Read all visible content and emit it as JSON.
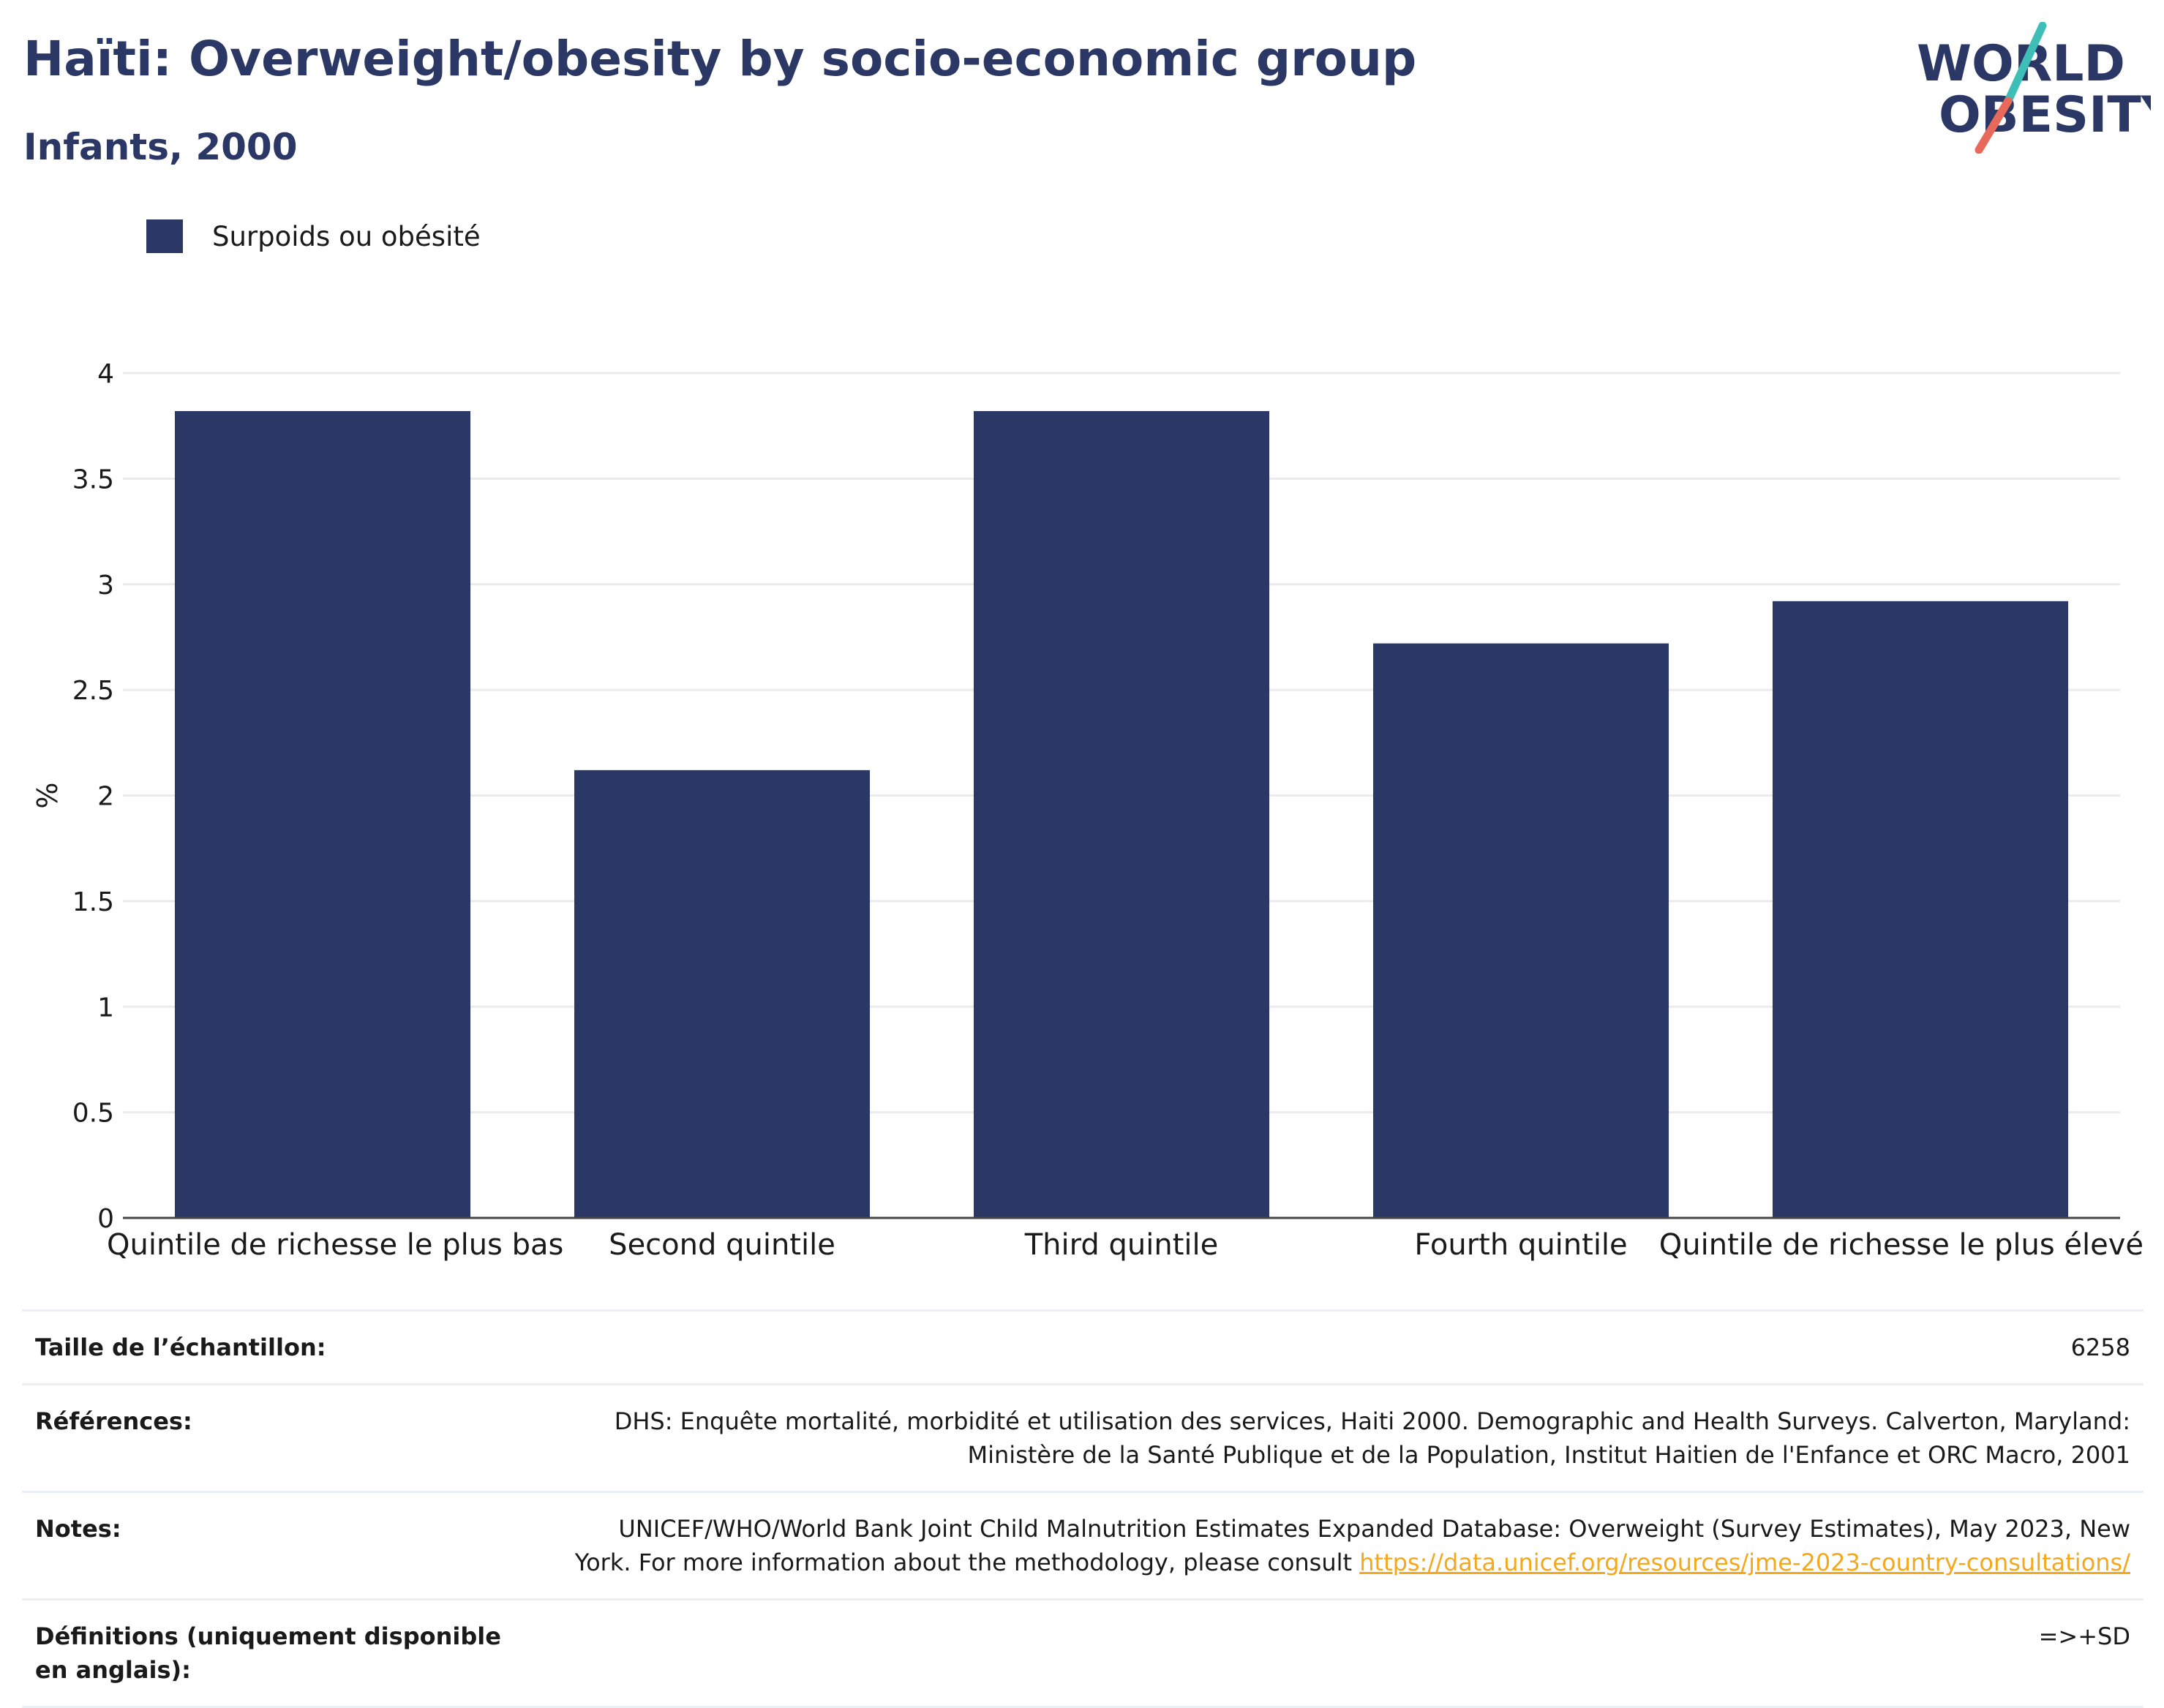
{
  "header": {
    "title": "Haïti: Overweight/obesity by socio-economic group",
    "subtitle": "Infants, 2000"
  },
  "logo": {
    "line1": "WORLD",
    "line2": "OBESITY"
  },
  "colors": {
    "bar": "#2b3764",
    "title": "#2b3764",
    "link": "#f4a81c",
    "logo_teal": "#3dbfb8",
    "logo_coral": "#e8685a"
  },
  "chart_data": {
    "type": "bar",
    "categories": [
      "Quintile de richesse le plus bas",
      "Second quintile",
      "Third quintile",
      "Fourth quintile",
      "Quintile de richesse le plus élevé"
    ],
    "series": [
      {
        "name": "Surpoids ou obésité",
        "values": [
          3.82,
          2.12,
          3.82,
          2.72,
          2.92
        ]
      }
    ],
    "ylabel": "%",
    "xlabel": "",
    "ylim": [
      0,
      4
    ],
    "yticks": [
      0,
      0.5,
      1,
      1.5,
      2,
      2.5,
      3,
      3.5,
      4
    ],
    "ytick_labels": [
      "0",
      "0.5",
      "1",
      "1.5",
      "2",
      "2.5",
      "3",
      "3.5",
      "4"
    ],
    "grid": true,
    "legend_position": "top-left"
  },
  "info": {
    "sample_label": "Taille de l’échantillon:",
    "sample_value": "6258",
    "references_label": "Références:",
    "references_value": "DHS: Enquête mortalité, morbidité et utilisation des services, Haiti 2000. Demographic and Health Surveys. Calverton, Maryland: Ministère de la Santé Publique et de la Population, Institut Haitien de l'Enfance et ORC Macro, 2001",
    "notes_label": "Notes:",
    "notes_value": "UNICEF/WHO/World Bank Joint Child Malnutrition Estimates Expanded Database: Overweight (Survey Estimates), May 2023, New York. For more information about the methodology, please consult",
    "notes_link": "https://data.unicef.org/resources/jme-2023-country-consultations/",
    "definitions_label": "Définitions (uniquement disponible en anglais):",
    "definitions_value": "=>+SD"
  }
}
